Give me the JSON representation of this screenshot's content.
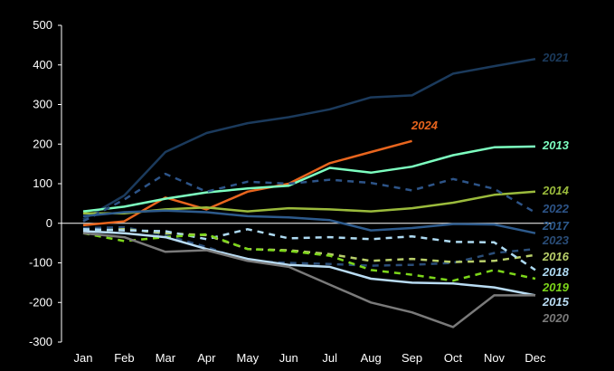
{
  "chart_data": {
    "type": "line",
    "title": "",
    "xlabel": "",
    "ylabel": "",
    "ylim": [
      -300,
      500
    ],
    "yticks": [
      500,
      400,
      300,
      200,
      100,
      0,
      -100,
      -200,
      -300
    ],
    "grid": false,
    "legend": "inline-right",
    "categories": [
      "Jan",
      "Feb",
      "Mar",
      "Apr",
      "May",
      "Jun",
      "Jul",
      "Aug",
      "Sep",
      "Oct",
      "Nov",
      "Dec"
    ],
    "series": [
      {
        "name": "2021",
        "color": "#1b3a5c",
        "dash": false,
        "values": [
          10,
          70,
          180,
          228,
          253,
          268,
          288,
          318,
          323,
          378,
          397,
          415
        ]
      },
      {
        "name": "2024",
        "color": "#e8651e",
        "dash": false,
        "values": [
          -5,
          5,
          65,
          35,
          80,
          100,
          152,
          180,
          208,
          null,
          null,
          null
        ]
      },
      {
        "name": "2013",
        "color": "#7dffc0",
        "dash": false,
        "values": [
          30,
          42,
          62,
          78,
          88,
          95,
          140,
          128,
          143,
          172,
          192,
          194
        ]
      },
      {
        "name": "2014",
        "color": "#9bbb3c",
        "dash": false,
        "values": [
          25,
          25,
          35,
          40,
          30,
          38,
          35,
          30,
          38,
          52,
          72,
          80
        ]
      },
      {
        "name": "2022",
        "color": "#2d5488",
        "dash": true,
        "values": [
          5,
          60,
          125,
          80,
          105,
          100,
          110,
          102,
          83,
          112,
          87,
          27
        ]
      },
      {
        "name": "2017",
        "color": "#2d5a8c",
        "dash": false,
        "values": [
          18,
          28,
          32,
          28,
          18,
          15,
          8,
          -18,
          -12,
          -2,
          -3,
          -25
        ]
      },
      {
        "name": "2023",
        "color": "#2a4d78",
        "dash": true,
        "values": [
          -12,
          -10,
          -30,
          -60,
          -95,
          -100,
          -103,
          -107,
          -105,
          -100,
          -75,
          -65
        ]
      },
      {
        "name": "2016",
        "color": "#b8cf6a",
        "dash": true,
        "values": [
          -20,
          -15,
          -25,
          -30,
          -65,
          -68,
          -78,
          -95,
          -90,
          -98,
          -95,
          -80
        ]
      },
      {
        "name": "2018",
        "color": "#aedaf2",
        "dash": true,
        "values": [
          -15,
          -18,
          -20,
          -40,
          -15,
          -38,
          -35,
          -40,
          -33,
          -47,
          -48,
          -118
        ]
      },
      {
        "name": "2019",
        "color": "#7cd61a",
        "dash": true,
        "values": [
          -25,
          -45,
          -35,
          -28,
          -65,
          -70,
          -82,
          -118,
          -130,
          -145,
          -118,
          -140
        ]
      },
      {
        "name": "2015",
        "color": "#b9dcf3",
        "dash": false,
        "values": [
          -20,
          -25,
          -35,
          -65,
          -90,
          -105,
          -110,
          -140,
          -150,
          -152,
          -162,
          -182
        ]
      },
      {
        "name": "2020",
        "color": "#7a7a7a",
        "dash": false,
        "values": [
          -25,
          -35,
          -72,
          -68,
          -95,
          -110,
          -155,
          -200,
          -225,
          -262,
          -182,
          -182
        ]
      }
    ]
  }
}
